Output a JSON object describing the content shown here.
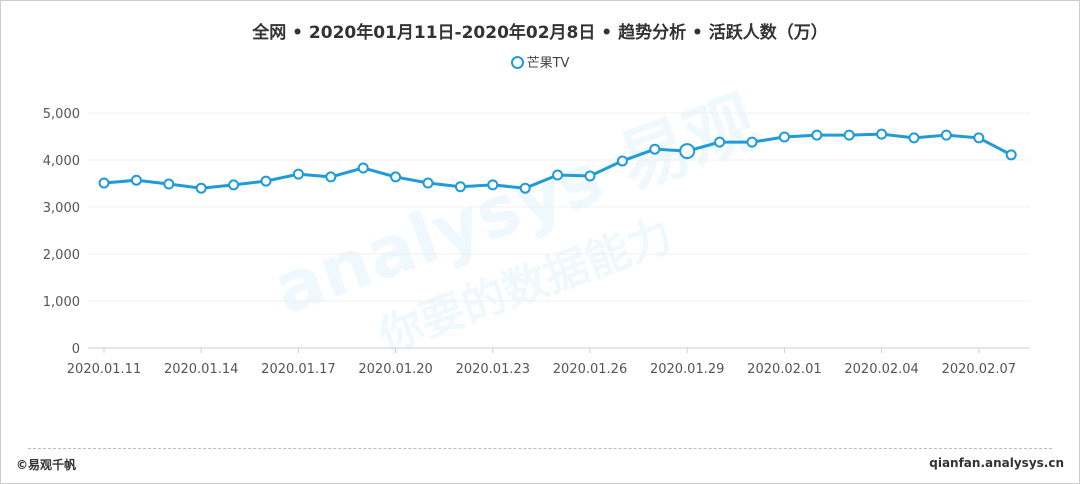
{
  "chart_data": {
    "type": "line",
    "title": "全网 • 2020年01月11日-2020年02月8日 • 趋势分析 • 活跃人数（万）",
    "legend": [
      "芒果TV"
    ],
    "legend_placement": "top",
    "series": [
      {
        "name": "芒果TV",
        "color": "#1f9bd7",
        "values": [
          3510,
          3570,
          3490,
          3400,
          3470,
          3550,
          3700,
          3640,
          3830,
          3640,
          3510,
          3430,
          3470,
          3400,
          3680,
          3660,
          3980,
          4230,
          4190,
          4380,
          4380,
          4490,
          4530,
          4530,
          4550,
          4470,
          4530,
          4470,
          4110
        ]
      }
    ],
    "x": [
      "2020.01.11",
      "2020.01.12",
      "2020.01.13",
      "2020.01.14",
      "2020.01.15",
      "2020.01.16",
      "2020.01.17",
      "2020.01.18",
      "2020.01.19",
      "2020.01.20",
      "2020.01.21",
      "2020.01.22",
      "2020.01.23",
      "2020.01.24",
      "2020.01.25",
      "2020.01.26",
      "2020.01.27",
      "2020.01.28",
      "2020.01.29",
      "2020.01.30",
      "2020.01.31",
      "2020.02.01",
      "2020.02.02",
      "2020.02.03",
      "2020.02.04",
      "2020.02.05",
      "2020.02.06",
      "2020.02.07",
      "2020.02.08"
    ],
    "xticks": [
      "2020.01.11",
      "2020.01.14",
      "2020.01.17",
      "2020.01.20",
      "2020.01.23",
      "2020.01.26",
      "2020.01.29",
      "2020.02.01",
      "2020.02.04",
      "2020.02.07"
    ],
    "yticks": [
      "0",
      "1,000",
      "2,000",
      "3,000",
      "4,000",
      "5,000"
    ],
    "ylim": [
      0,
      5000
    ],
    "grid": true
  },
  "footer": {
    "left": "©易观千帆",
    "right": "qianfan.analysys.cn"
  },
  "watermark": {
    "text1": "analysys 易观",
    "text2": "你要的数据能力"
  }
}
